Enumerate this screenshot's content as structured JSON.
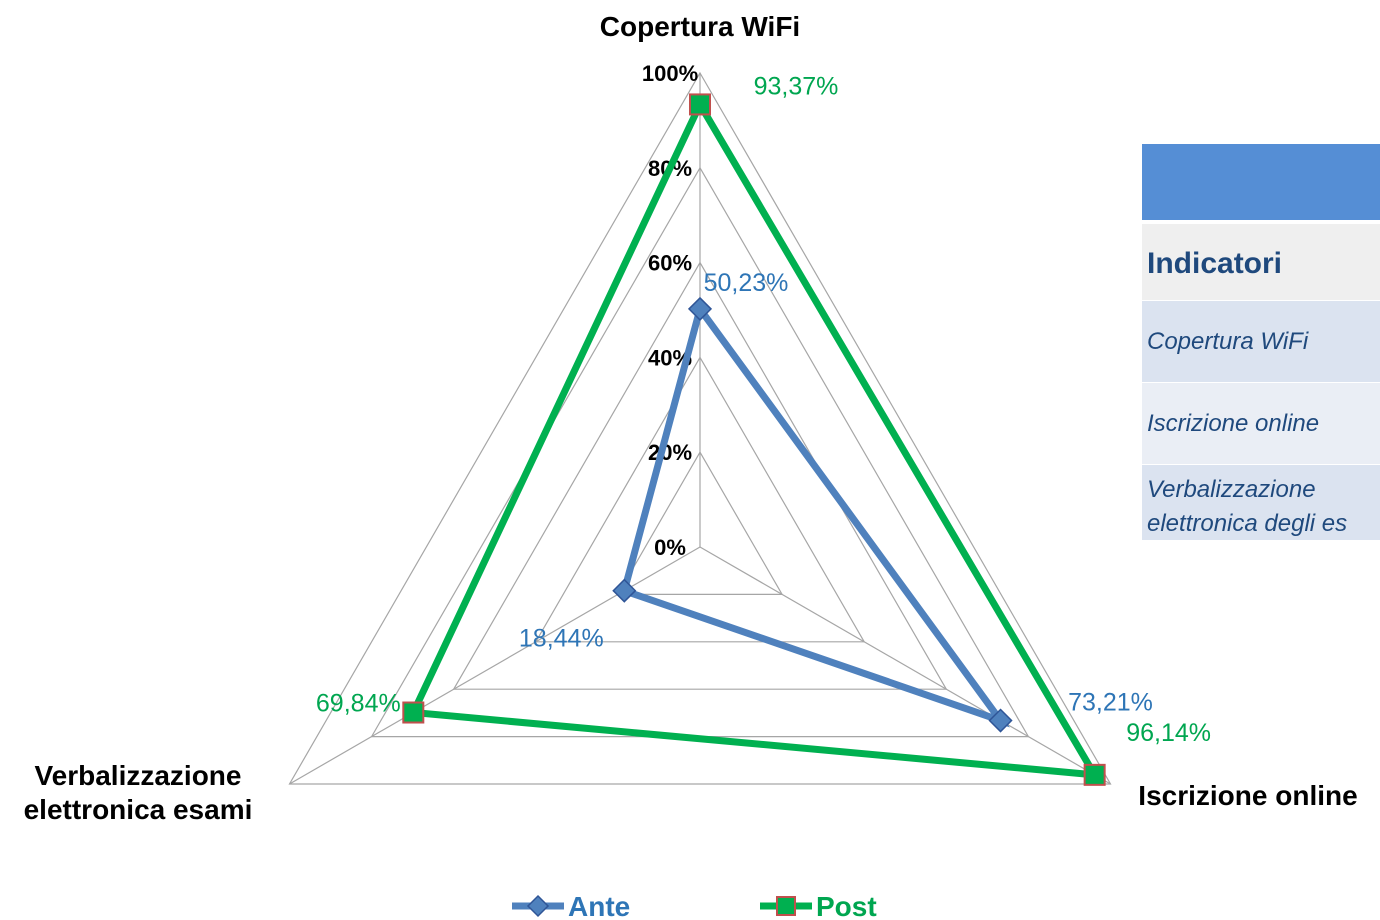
{
  "chart_data": {
    "type": "radar",
    "axes": [
      "Copertura WiFi",
      "Iscrizione online",
      "Verbalizzazione elettronica esami"
    ],
    "axis_label_lines": [
      [
        "Copertura WiFi"
      ],
      [
        "Iscrizione online"
      ],
      [
        "Verbalizzazione",
        "elettronica esami"
      ]
    ],
    "r_ticks": [
      "0%",
      "20%",
      "40%",
      "60%",
      "80%",
      "100%"
    ],
    "r_range": [
      0,
      100
    ],
    "grid": true,
    "legend_position": "bottom",
    "series": [
      {
        "name": "Ante",
        "values": [
          50.23,
          73.21,
          18.44
        ],
        "labels": [
          "50,23%",
          "73,21%",
          "18,44%"
        ],
        "color": "#4f81bd",
        "label_color": "#2e75b6",
        "marker": "diamond"
      },
      {
        "name": "Post",
        "values": [
          93.37,
          96.14,
          69.84
        ],
        "labels": [
          "93,37%",
          "96,14%",
          "69,84%"
        ],
        "color": "#00b050",
        "label_color": "#00a650",
        "marker": "square"
      }
    ]
  },
  "side_table": {
    "header": "Indicatori",
    "rows": [
      "Copertura WiFi",
      "Iscrizione online"
    ],
    "row3_line1": "Verbalizzazione",
    "row3_line2": "elettronica degli es"
  }
}
